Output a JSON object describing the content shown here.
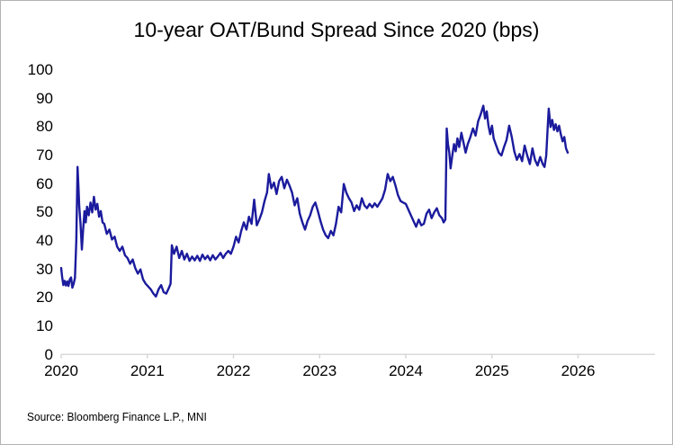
{
  "chart_data": {
    "type": "line",
    "title": "10-year OAT/Bund Spread Since 2020 (bps)",
    "xlabel": "",
    "ylabel": "",
    "source": "Source: Bloomberg Finance L.P., MNI",
    "x_ticks": [
      2020,
      2021,
      2022,
      2023,
      2024,
      2025,
      2026
    ],
    "y_ticks": [
      0,
      10,
      20,
      30,
      40,
      50,
      60,
      70,
      80,
      90,
      100
    ],
    "xlim": [
      2020,
      2026.9
    ],
    "ylim": [
      0,
      100
    ],
    "grid": false,
    "legend": false,
    "line_color": "#1b1b9d",
    "axis_color": "#d4d4d4",
    "text_color": "#000000",
    "series": [
      {
        "name": "10-year OAT/Bund spread (bps)",
        "points": [
          [
            2020.0,
            30.5
          ],
          [
            2020.01,
            27.5
          ],
          [
            2020.025,
            24.5
          ],
          [
            2020.04,
            26
          ],
          [
            2020.055,
            24.3
          ],
          [
            2020.07,
            25.8
          ],
          [
            2020.085,
            24.2
          ],
          [
            2020.1,
            26.5
          ],
          [
            2020.115,
            27.2
          ],
          [
            2020.13,
            23.6
          ],
          [
            2020.145,
            25.0
          ],
          [
            2020.16,
            27.0
          ],
          [
            2020.175,
            40
          ],
          [
            2020.19,
            66
          ],
          [
            2020.2,
            59
          ],
          [
            2020.21,
            52
          ],
          [
            2020.225,
            46
          ],
          [
            2020.24,
            37
          ],
          [
            2020.255,
            44
          ],
          [
            2020.27,
            50.5
          ],
          [
            2020.285,
            46.5
          ],
          [
            2020.3,
            52
          ],
          [
            2020.32,
            49
          ],
          [
            2020.34,
            53.5
          ],
          [
            2020.36,
            50
          ],
          [
            2020.38,
            55.5
          ],
          [
            2020.4,
            51
          ],
          [
            2020.42,
            53
          ],
          [
            2020.44,
            48.5
          ],
          [
            2020.46,
            50.5
          ],
          [
            2020.48,
            46.5
          ],
          [
            2020.5,
            46
          ],
          [
            2020.53,
            42.5
          ],
          [
            2020.56,
            44
          ],
          [
            2020.59,
            40.5
          ],
          [
            2020.62,
            41.5
          ],
          [
            2020.65,
            38
          ],
          [
            2020.68,
            36.5
          ],
          [
            2020.71,
            38
          ],
          [
            2020.74,
            35
          ],
          [
            2020.77,
            34
          ],
          [
            2020.8,
            32
          ],
          [
            2020.83,
            33.5
          ],
          [
            2020.86,
            30.5
          ],
          [
            2020.89,
            28.5
          ],
          [
            2020.92,
            30
          ],
          [
            2020.95,
            26.5
          ],
          [
            2020.98,
            25
          ],
          [
            2021.01,
            24
          ],
          [
            2021.04,
            23
          ],
          [
            2021.07,
            21.5
          ],
          [
            2021.1,
            20.5
          ],
          [
            2021.13,
            23
          ],
          [
            2021.16,
            24.5
          ],
          [
            2021.19,
            22
          ],
          [
            2021.22,
            21.5
          ],
          [
            2021.25,
            23.5
          ],
          [
            2021.27,
            25
          ],
          [
            2021.285,
            38.5
          ],
          [
            2021.31,
            35.5
          ],
          [
            2021.34,
            38
          ],
          [
            2021.37,
            34
          ],
          [
            2021.4,
            36.5
          ],
          [
            2021.43,
            33.5
          ],
          [
            2021.46,
            35.5
          ],
          [
            2021.49,
            33
          ],
          [
            2021.52,
            34.5
          ],
          [
            2021.55,
            33.2
          ],
          [
            2021.58,
            34.8
          ],
          [
            2021.61,
            33
          ],
          [
            2021.64,
            35.2
          ],
          [
            2021.67,
            33.6
          ],
          [
            2021.7,
            34.8
          ],
          [
            2021.73,
            33.2
          ],
          [
            2021.76,
            35
          ],
          [
            2021.79,
            33.5
          ],
          [
            2021.82,
            34.6
          ],
          [
            2021.85,
            35.8
          ],
          [
            2021.88,
            34
          ],
          [
            2021.91,
            35.5
          ],
          [
            2021.94,
            36.5
          ],
          [
            2021.97,
            35.5
          ],
          [
            2022.0,
            38
          ],
          [
            2022.03,
            41.5
          ],
          [
            2022.06,
            39.5
          ],
          [
            2022.09,
            43.5
          ],
          [
            2022.12,
            46.5
          ],
          [
            2022.15,
            44
          ],
          [
            2022.18,
            48.5
          ],
          [
            2022.21,
            46
          ],
          [
            2022.24,
            54.5
          ],
          [
            2022.27,
            45.5
          ],
          [
            2022.3,
            47.5
          ],
          [
            2022.33,
            50
          ],
          [
            2022.36,
            54
          ],
          [
            2022.39,
            57
          ],
          [
            2022.41,
            63.5
          ],
          [
            2022.44,
            58.5
          ],
          [
            2022.47,
            60.5
          ],
          [
            2022.5,
            56.5
          ],
          [
            2022.53,
            61
          ],
          [
            2022.56,
            62.5
          ],
          [
            2022.59,
            58.5
          ],
          [
            2022.62,
            61.5
          ],
          [
            2022.65,
            59.5
          ],
          [
            2022.68,
            57
          ],
          [
            2022.71,
            52.5
          ],
          [
            2022.74,
            55
          ],
          [
            2022.77,
            49.5
          ],
          [
            2022.8,
            46.5
          ],
          [
            2022.83,
            44
          ],
          [
            2022.86,
            47
          ],
          [
            2022.89,
            49
          ],
          [
            2022.92,
            52
          ],
          [
            2022.95,
            53.5
          ],
          [
            2022.98,
            50.5
          ],
          [
            2023.01,
            47
          ],
          [
            2023.04,
            44
          ],
          [
            2023.07,
            42
          ],
          [
            2023.1,
            41
          ],
          [
            2023.13,
            43.5
          ],
          [
            2023.16,
            42
          ],
          [
            2023.19,
            46
          ],
          [
            2023.22,
            52
          ],
          [
            2023.25,
            50
          ],
          [
            2023.28,
            60
          ],
          [
            2023.31,
            57
          ],
          [
            2023.34,
            55
          ],
          [
            2023.37,
            53.5
          ],
          [
            2023.4,
            50.5
          ],
          [
            2023.43,
            52.5
          ],
          [
            2023.46,
            51
          ],
          [
            2023.49,
            55
          ],
          [
            2023.52,
            52.5
          ],
          [
            2023.55,
            51.5
          ],
          [
            2023.58,
            53
          ],
          [
            2023.61,
            51.8
          ],
          [
            2023.64,
            53.2
          ],
          [
            2023.67,
            52
          ],
          [
            2023.7,
            53.5
          ],
          [
            2023.73,
            55
          ],
          [
            2023.76,
            58
          ],
          [
            2023.79,
            63.5
          ],
          [
            2023.82,
            61
          ],
          [
            2023.85,
            62.5
          ],
          [
            2023.88,
            59.5
          ],
          [
            2023.91,
            56
          ],
          [
            2023.94,
            54
          ],
          [
            2023.97,
            53.5
          ],
          [
            2024.0,
            53
          ],
          [
            2024.03,
            51
          ],
          [
            2024.06,
            49
          ],
          [
            2024.09,
            47
          ],
          [
            2024.12,
            45
          ],
          [
            2024.15,
            47.5
          ],
          [
            2024.18,
            45.5
          ],
          [
            2024.21,
            46
          ],
          [
            2024.24,
            49.5
          ],
          [
            2024.27,
            51
          ],
          [
            2024.3,
            48
          ],
          [
            2024.33,
            50
          ],
          [
            2024.36,
            51.5
          ],
          [
            2024.39,
            49
          ],
          [
            2024.42,
            48
          ],
          [
            2024.44,
            46.5
          ],
          [
            2024.46,
            47.5
          ],
          [
            2024.475,
            79.5
          ],
          [
            2024.49,
            74
          ],
          [
            2024.505,
            71
          ],
          [
            2024.52,
            65.5
          ],
          [
            2024.54,
            70
          ],
          [
            2024.56,
            74
          ],
          [
            2024.58,
            71.5
          ],
          [
            2024.6,
            76
          ],
          [
            2024.62,
            73
          ],
          [
            2024.645,
            78
          ],
          [
            2024.67,
            74.5
          ],
          [
            2024.695,
            71
          ],
          [
            2024.72,
            74
          ],
          [
            2024.75,
            76.5
          ],
          [
            2024.78,
            79.5
          ],
          [
            2024.81,
            77
          ],
          [
            2024.84,
            82
          ],
          [
            2024.87,
            84.5
          ],
          [
            2024.9,
            87.5
          ],
          [
            2024.92,
            83
          ],
          [
            2024.94,
            85.5
          ],
          [
            2024.96,
            80.5
          ],
          [
            2024.98,
            77.5
          ],
          [
            2025.0,
            80.5
          ],
          [
            2025.02,
            76
          ],
          [
            2025.05,
            73.5
          ],
          [
            2025.08,
            71
          ],
          [
            2025.11,
            70
          ],
          [
            2025.14,
            73
          ],
          [
            2025.17,
            75.5
          ],
          [
            2025.2,
            80.5
          ],
          [
            2025.23,
            76.5
          ],
          [
            2025.26,
            71.5
          ],
          [
            2025.29,
            68.5
          ],
          [
            2025.32,
            70.5
          ],
          [
            2025.35,
            68
          ],
          [
            2025.38,
            73.5
          ],
          [
            2025.41,
            70
          ],
          [
            2025.44,
            67
          ],
          [
            2025.47,
            72.5
          ],
          [
            2025.5,
            68.5
          ],
          [
            2025.53,
            66.5
          ],
          [
            2025.56,
            69.5
          ],
          [
            2025.59,
            67
          ],
          [
            2025.61,
            66
          ],
          [
            2025.63,
            70
          ],
          [
            2025.65,
            81.5
          ],
          [
            2025.66,
            86.5
          ],
          [
            2025.68,
            80
          ],
          [
            2025.7,
            82.5
          ],
          [
            2025.72,
            79
          ],
          [
            2025.74,
            81
          ],
          [
            2025.76,
            78.5
          ],
          [
            2025.78,
            80.5
          ],
          [
            2025.8,
            77.5
          ],
          [
            2025.82,
            75
          ],
          [
            2025.84,
            76.5
          ],
          [
            2025.86,
            72.5
          ],
          [
            2025.88,
            71
          ]
        ]
      }
    ]
  }
}
